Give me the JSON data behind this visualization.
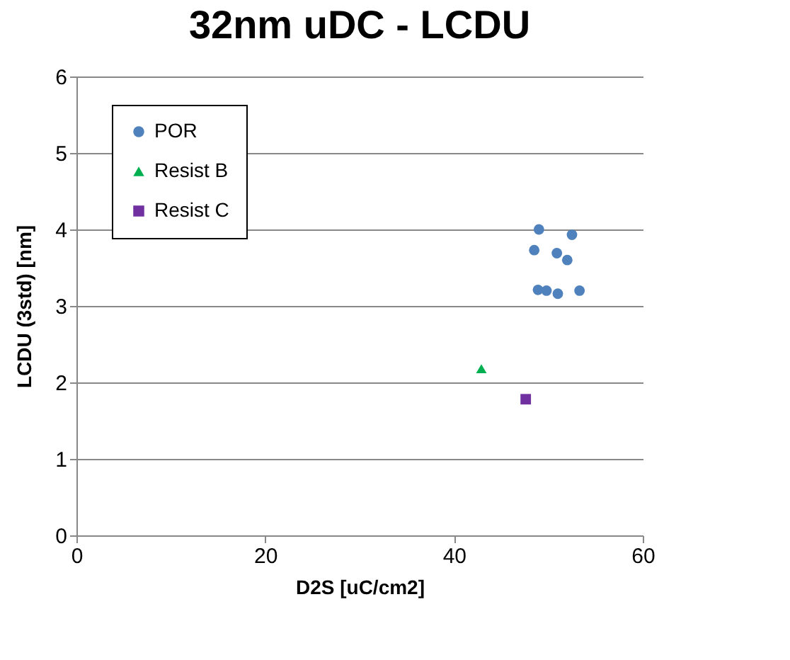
{
  "chart_data": {
    "type": "scatter",
    "title": "32nm uDC - LCDU",
    "xlabel": "D2S [uC/cm2]",
    "ylabel": "LCDU (3std) [nm]",
    "xlim": [
      0,
      60
    ],
    "xticks": [
      0,
      20,
      40,
      60
    ],
    "ylim": [
      0,
      6
    ],
    "yticks": [
      0,
      1,
      2,
      3,
      4,
      5,
      6
    ],
    "grid": "y",
    "legend": "top left",
    "series": [
      {
        "name": "POR",
        "color": "#4f81bd",
        "marker": "circle",
        "x": [
          49.0,
          52.5,
          48.5,
          50.9,
          52.0,
          48.9,
          49.8,
          51.0,
          53.3
        ],
        "values": [
          4.0,
          3.93,
          3.73,
          3.69,
          3.6,
          3.21,
          3.2,
          3.16,
          3.2
        ]
      },
      {
        "name": "Resist B",
        "color": "#00b050",
        "marker": "triangle",
        "x": [
          42.9
        ],
        "values": [
          2.18
        ]
      },
      {
        "name": "Resist C",
        "color": "#7030a0",
        "marker": "square",
        "x": [
          47.6
        ],
        "values": [
          1.78
        ]
      }
    ]
  }
}
